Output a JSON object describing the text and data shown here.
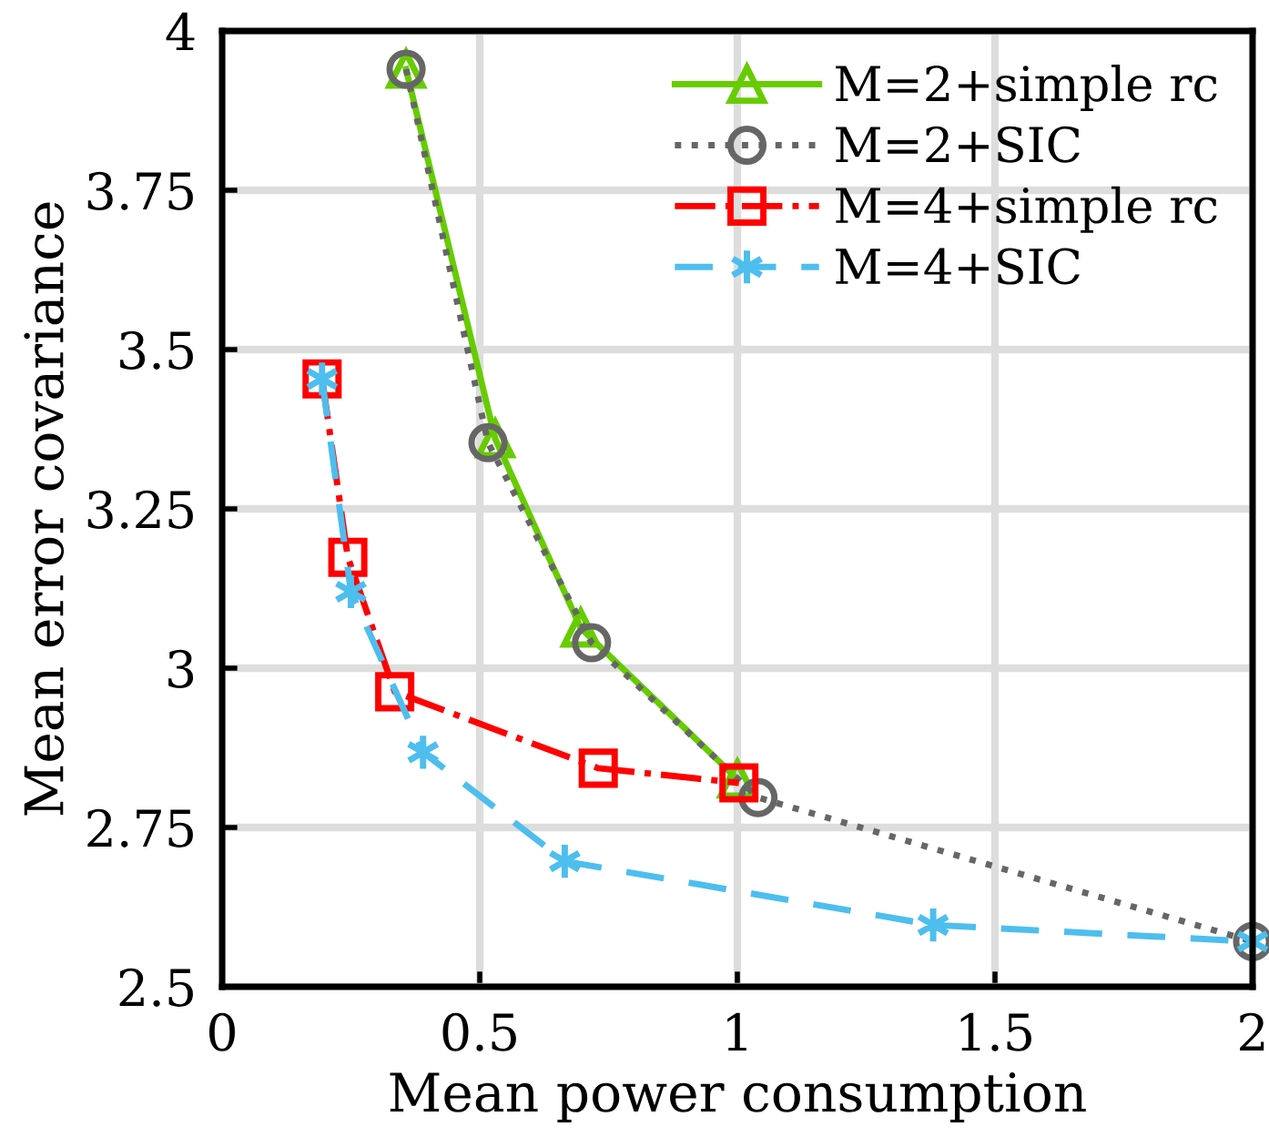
{
  "chart_data": {
    "type": "line",
    "xlabel": "Mean power consumption",
    "ylabel": "Mean error covariance",
    "xlim": [
      0,
      2
    ],
    "ylim": [
      2.5,
      4
    ],
    "xticks": [
      0,
      0.5,
      1,
      1.5,
      2
    ],
    "yticks": [
      2.5,
      2.75,
      3,
      3.25,
      3.5,
      3.75,
      4
    ],
    "grid": true,
    "legend": "top right",
    "series": [
      {
        "name": "M=2+simple rc",
        "color": "#66cc00",
        "marker": "triangle",
        "line_style": "solid",
        "x": [
          0.357,
          0.53,
          0.696,
          1.0
        ],
        "values": [
          3.94,
          3.36,
          3.063,
          2.826
        ]
      },
      {
        "name": "M=2+SIC",
        "color": "#666666",
        "marker": "circle",
        "line_style": "dotted",
        "x": [
          0.357,
          0.516,
          0.717,
          1.04,
          2.0
        ],
        "values": [
          3.94,
          3.354,
          3.04,
          2.797,
          2.571
        ]
      },
      {
        "name": "M=4+simple rc",
        "color": "#ff0000",
        "marker": "square",
        "line_style": "dashdot",
        "x": [
          0.194,
          0.244,
          0.335,
          0.73,
          1.003
        ],
        "values": [
          3.454,
          3.174,
          2.963,
          2.843,
          2.82
        ]
      },
      {
        "name": "M=4+SIC",
        "color": "#4dbeee",
        "marker": "cross",
        "line_style": "dashed",
        "x": [
          0.194,
          0.25,
          0.39,
          0.665,
          1.38,
          2.0
        ],
        "values": [
          3.454,
          3.12,
          2.868,
          2.697,
          2.597,
          2.571
        ]
      }
    ]
  }
}
